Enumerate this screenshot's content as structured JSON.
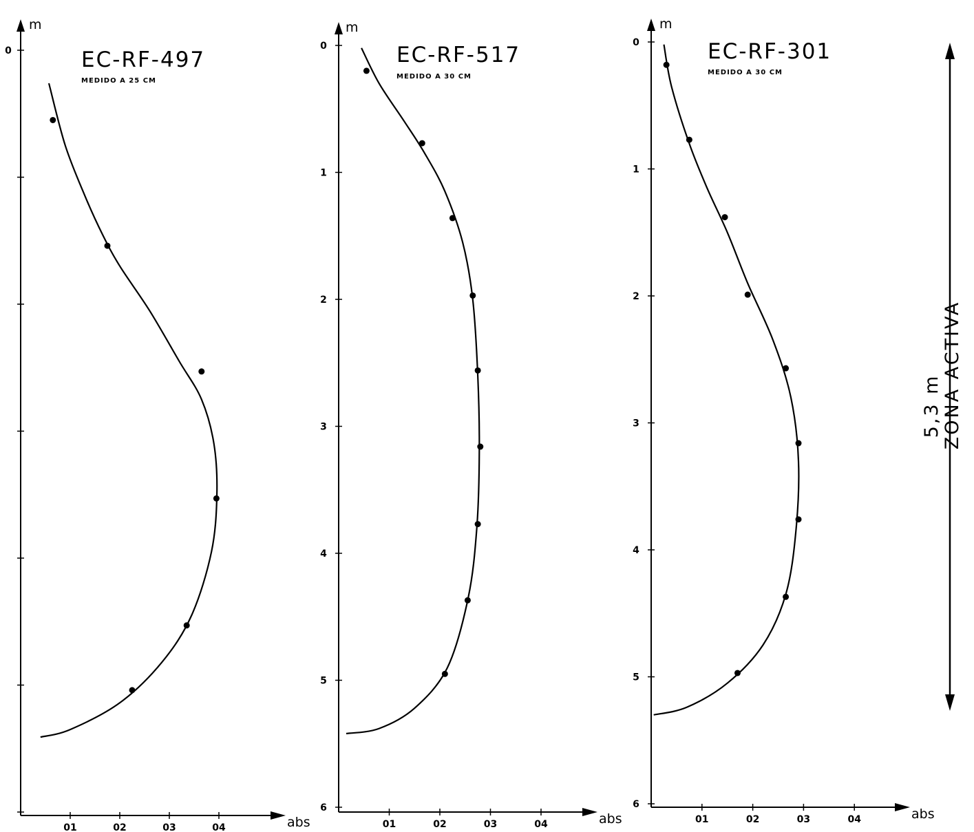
{
  "figure": {
    "zone_label": "ZONA ACTIVA",
    "zone_depth_label": "5,3 m"
  },
  "chart_data": [
    {
      "type": "line",
      "title": "EC-RF-497",
      "subtitle": "MEDIDO A 25 CM",
      "xlabel": "abs",
      "ylabel": "m",
      "xlim": [
        0,
        0.5
      ],
      "ylim": [
        6.1,
        0
      ],
      "x_ticks": [
        0.1,
        0.2,
        0.3,
        0.4
      ],
      "x_tick_labels": [
        "01",
        "02",
        "03",
        "04"
      ],
      "y_ticks": [
        0,
        1,
        2,
        3,
        4,
        5,
        6
      ],
      "y_tick_labels": [
        "0",
        "",
        "",
        "",
        "",
        "",
        ""
      ],
      "points": [
        {
          "x": 0.065,
          "y": 0.55
        },
        {
          "x": 0.175,
          "y": 1.54
        },
        {
          "x": 0.365,
          "y": 2.53
        },
        {
          "x": 0.395,
          "y": 3.53
        },
        {
          "x": 0.335,
          "y": 4.53
        },
        {
          "x": 0.225,
          "y": 5.04
        }
      ],
      "curve": [
        {
          "x": 0.057,
          "y": 0.26
        },
        {
          "x": 0.09,
          "y": 0.75
        },
        {
          "x": 0.13,
          "y": 1.15
        },
        {
          "x": 0.165,
          "y": 1.45
        },
        {
          "x": 0.2,
          "y": 1.7
        },
        {
          "x": 0.26,
          "y": 2.05
        },
        {
          "x": 0.32,
          "y": 2.45
        },
        {
          "x": 0.365,
          "y": 2.75
        },
        {
          "x": 0.39,
          "y": 3.1
        },
        {
          "x": 0.396,
          "y": 3.5
        },
        {
          "x": 0.385,
          "y": 3.95
        },
        {
          "x": 0.345,
          "y": 4.45
        },
        {
          "x": 0.285,
          "y": 4.82
        },
        {
          "x": 0.2,
          "y": 5.14
        },
        {
          "x": 0.1,
          "y": 5.35
        },
        {
          "x": 0.04,
          "y": 5.41
        }
      ]
    },
    {
      "type": "line",
      "title": "EC-RF-517",
      "subtitle": "MEDIDO A 30 CM",
      "xlabel": "abs",
      "ylabel": "m",
      "xlim": [
        0,
        0.5
      ],
      "ylim": [
        6,
        0
      ],
      "x_ticks": [
        0.1,
        0.2,
        0.3,
        0.4
      ],
      "x_tick_labels": [
        "01",
        "02",
        "03",
        "04"
      ],
      "y_ticks": [
        0,
        1,
        2,
        3,
        4,
        5,
        6
      ],
      "y_tick_labels": [
        "0",
        "1",
        "2",
        "3",
        "4",
        "5",
        "6"
      ],
      "points": [
        {
          "x": 0.055,
          "y": 0.2
        },
        {
          "x": 0.165,
          "y": 0.77
        },
        {
          "x": 0.225,
          "y": 1.36
        },
        {
          "x": 0.265,
          "y": 1.97
        },
        {
          "x": 0.275,
          "y": 2.56
        },
        {
          "x": 0.28,
          "y": 3.16
        },
        {
          "x": 0.275,
          "y": 3.77
        },
        {
          "x": 0.255,
          "y": 4.37
        },
        {
          "x": 0.21,
          "y": 4.95
        }
      ],
      "curve": [
        {
          "x": 0.045,
          "y": 0.02
        },
        {
          "x": 0.08,
          "y": 0.3
        },
        {
          "x": 0.13,
          "y": 0.6
        },
        {
          "x": 0.17,
          "y": 0.85
        },
        {
          "x": 0.21,
          "y": 1.15
        },
        {
          "x": 0.245,
          "y": 1.55
        },
        {
          "x": 0.265,
          "y": 2.0
        },
        {
          "x": 0.275,
          "y": 2.6
        },
        {
          "x": 0.278,
          "y": 3.2
        },
        {
          "x": 0.273,
          "y": 3.8
        },
        {
          "x": 0.256,
          "y": 4.35
        },
        {
          "x": 0.215,
          "y": 4.9
        },
        {
          "x": 0.15,
          "y": 5.22
        },
        {
          "x": 0.08,
          "y": 5.38
        },
        {
          "x": 0.015,
          "y": 5.42
        }
      ]
    },
    {
      "type": "line",
      "title": "EC-RF-301",
      "subtitle": "MEDIDO A 30 CM",
      "xlabel": "abs",
      "ylabel": "m",
      "xlim": [
        0,
        0.5
      ],
      "ylim": [
        6,
        0
      ],
      "x_ticks": [
        0.1,
        0.2,
        0.3,
        0.4
      ],
      "x_tick_labels": [
        "01",
        "02",
        "03",
        "04"
      ],
      "y_ticks": [
        0,
        1,
        2,
        3,
        4,
        5,
        6
      ],
      "y_tick_labels": [
        "0",
        "1",
        "2",
        "3",
        "4",
        "5",
        "6"
      ],
      "points": [
        {
          "x": 0.03,
          "y": 0.18
        },
        {
          "x": 0.075,
          "y": 0.77
        },
        {
          "x": 0.145,
          "y": 1.38
        },
        {
          "x": 0.19,
          "y": 1.99
        },
        {
          "x": 0.265,
          "y": 2.57
        },
        {
          "x": 0.29,
          "y": 3.16
        },
        {
          "x": 0.29,
          "y": 3.76
        },
        {
          "x": 0.265,
          "y": 4.37
        },
        {
          "x": 0.17,
          "y": 4.97
        }
      ],
      "curve": [
        {
          "x": 0.025,
          "y": 0.02
        },
        {
          "x": 0.04,
          "y": 0.35
        },
        {
          "x": 0.075,
          "y": 0.8
        },
        {
          "x": 0.11,
          "y": 1.15
        },
        {
          "x": 0.15,
          "y": 1.5
        },
        {
          "x": 0.19,
          "y": 1.9
        },
        {
          "x": 0.24,
          "y": 2.35
        },
        {
          "x": 0.275,
          "y": 2.8
        },
        {
          "x": 0.29,
          "y": 3.3
        },
        {
          "x": 0.285,
          "y": 3.85
        },
        {
          "x": 0.265,
          "y": 4.35
        },
        {
          "x": 0.22,
          "y": 4.75
        },
        {
          "x": 0.15,
          "y": 5.05
        },
        {
          "x": 0.07,
          "y": 5.24
        },
        {
          "x": 0.005,
          "y": 5.3
        }
      ]
    }
  ]
}
